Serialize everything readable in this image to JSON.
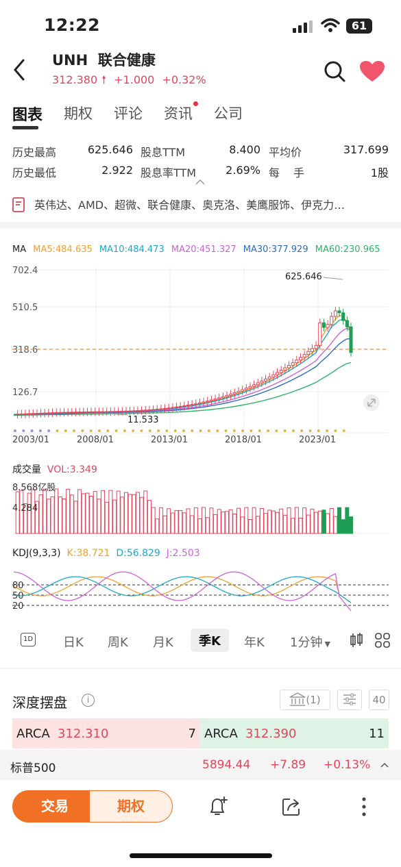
{
  "status_bar": {
    "time": "12:22",
    "battery": "61"
  },
  "header": {
    "ticker": "UNH",
    "name": "联合健康",
    "price": "312.380",
    "change": "+1.000",
    "change_pct": "+0.32%"
  },
  "tabs": [
    {
      "label": "图表",
      "active": true
    },
    {
      "label": "期权"
    },
    {
      "label": "评论"
    },
    {
      "label": "资讯",
      "dot": true
    },
    {
      "label": "公司"
    }
  ],
  "stats": {
    "high_label": "历史最高",
    "high_value": "625.646",
    "div_ttm_label": "股息TTM",
    "div_ttm_value": "8.400",
    "avg_label": "平均价",
    "avg_value": "317.699",
    "low_label": "历史最低",
    "low_value": "2.922",
    "div_rate_label": "股息率TTM",
    "div_rate_value": "2.69%",
    "lot_label_1": "每",
    "lot_label_2": "手",
    "lot_value": "1股"
  },
  "related": "英伟达、AMD、超微、联合健康、奥克洛、美鹰服饰、伊克力…",
  "ma": {
    "label": "MA",
    "ma5": "MA5:484.635",
    "ma10": "MA10:484.473",
    "ma20": "MA20:451.327",
    "ma30": "MA30:377.929",
    "ma60": "MA60:230.965",
    "colors": {
      "ma5": "#f0a030",
      "ma10": "#1ba9c9",
      "ma20": "#c964d6",
      "ma30": "#2b6cc4",
      "ma60": "#2fb36a"
    }
  },
  "chart_data": [
    {
      "type": "candlestick",
      "title": "",
      "y_ticks": [
        "702.4",
        "510.5",
        "318.6",
        "126.7"
      ],
      "x_ticks": [
        "2003/01",
        "2008/01",
        "2013/01",
        "2018/01",
        "2023/01"
      ],
      "annotations": [
        "625.646",
        "11.533"
      ],
      "current_price_line": 312.38,
      "ylim": [
        -30,
        702.4
      ]
    },
    {
      "type": "bar",
      "title": "成交量",
      "indicator": "VOL:3.349",
      "y_ticks": [
        "8.568亿股",
        "4.284"
      ]
    },
    {
      "type": "line",
      "title": "KDJ(9,3,3)",
      "k": "K:38.721",
      "d": "D:56.829",
      "j": "J:2.503",
      "y_ticks": [
        "80",
        "50",
        "20"
      ]
    }
  ],
  "periods": [
    {
      "label": "日K"
    },
    {
      "label": "周K"
    },
    {
      "label": "月K"
    },
    {
      "label": "季K",
      "active": true
    },
    {
      "label": "年K"
    },
    {
      "label": "1分钟"
    }
  ],
  "depth": {
    "title": "深度摆盘",
    "bank_count": "(1)",
    "level": "40",
    "bid_exchange": "ARCA",
    "bid_price": "312.310",
    "bid_size": "7",
    "ask_exchange": "ARCA",
    "ask_price": "312.390",
    "ask_size": "11"
  },
  "index_bar": {
    "name": "标普500",
    "value": "5894.44",
    "change": "+7.89",
    "pct": "+0.13%"
  },
  "bottom": {
    "trade": "交易",
    "options": "期权"
  }
}
